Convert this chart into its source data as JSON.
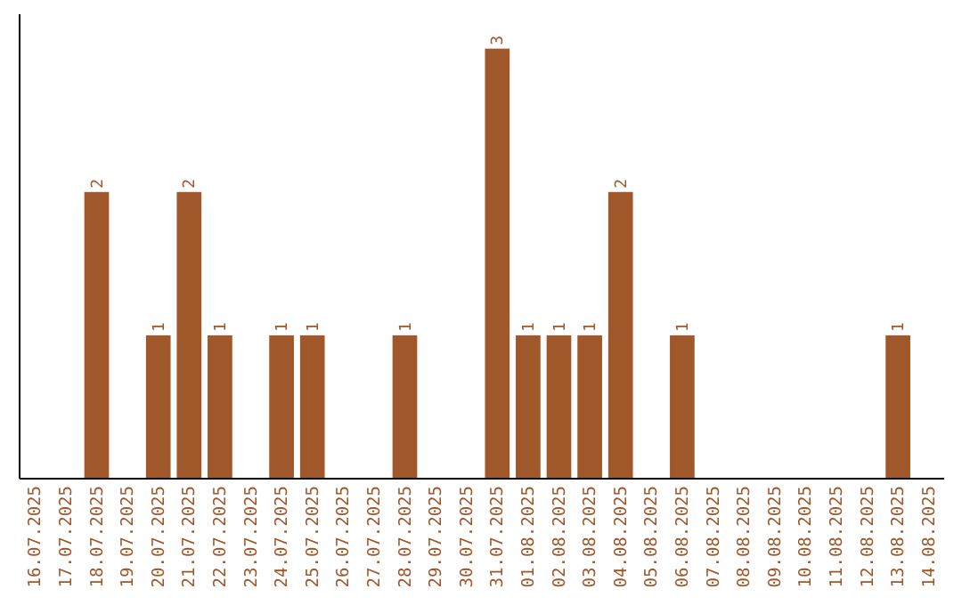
{
  "chart_data": {
    "type": "bar",
    "categories": [
      "16.07.2025",
      "17.07.2025",
      "18.07.2025",
      "19.07.2025",
      "20.07.2025",
      "21.07.2025",
      "22.07.2025",
      "23.07.2025",
      "24.07.2025",
      "25.07.2025",
      "26.07.2025",
      "27.07.2025",
      "28.07.2025",
      "29.07.2025",
      "30.07.2025",
      "31.07.2025",
      "01.08.2025",
      "02.08.2025",
      "03.08.2025",
      "04.08.2025",
      "05.08.2025",
      "06.08.2025",
      "07.08.2025",
      "08.08.2025",
      "09.08.2025",
      "10.08.2025",
      "11.08.2025",
      "12.08.2025",
      "13.08.2025",
      "14.08.2025"
    ],
    "values": [
      0,
      0,
      2,
      0,
      1,
      2,
      1,
      0,
      1,
      1,
      0,
      0,
      1,
      0,
      0,
      3,
      1,
      1,
      1,
      2,
      0,
      1,
      0,
      0,
      0,
      0,
      0,
      0,
      1,
      0
    ],
    "value_labels": [
      null,
      null,
      "2",
      null,
      "1",
      "2",
      "1",
      null,
      "1",
      "1",
      null,
      null,
      "1",
      null,
      null,
      "3",
      "1",
      "1",
      "1",
      "2",
      null,
      "1",
      null,
      null,
      null,
      null,
      null,
      null,
      "1",
      null
    ],
    "color": "#a0572a"
  }
}
